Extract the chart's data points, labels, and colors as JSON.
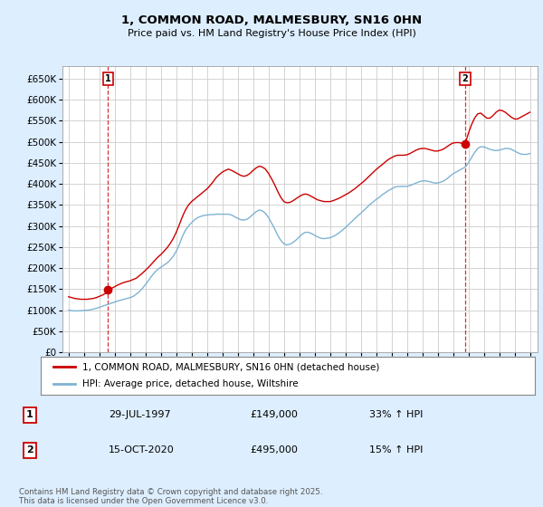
{
  "title_line1": "1, COMMON ROAD, MALMESBURY, SN16 0HN",
  "title_line2": "Price paid vs. HM Land Registry's House Price Index (HPI)",
  "legend_entry1": "1, COMMON ROAD, MALMESBURY, SN16 0HN (detached house)",
  "legend_entry2": "HPI: Average price, detached house, Wiltshire",
  "annotation1_label": "1",
  "annotation1_date": "29-JUL-1997",
  "annotation1_price": "£149,000",
  "annotation1_hpi": "33% ↑ HPI",
  "annotation2_label": "2",
  "annotation2_date": "15-OCT-2020",
  "annotation2_price": "£495,000",
  "annotation2_hpi": "15% ↑ HPI",
  "footer": "Contains HM Land Registry data © Crown copyright and database right 2025.\nThis data is licensed under the Open Government Licence v3.0.",
  "red_color": "#cc0000",
  "blue_color": "#7fb3d3",
  "bg_color": "#ddeeff",
  "plot_bg": "#ffffff",
  "grid_color": "#cccccc",
  "ylim": [
    0,
    680000
  ],
  "yticks": [
    0,
    50000,
    100000,
    150000,
    200000,
    250000,
    300000,
    350000,
    400000,
    450000,
    500000,
    550000,
    600000,
    650000
  ],
  "purchase1_x": 1997.57,
  "purchase1_y": 149000,
  "purchase2_x": 2020.79,
  "purchase2_y": 495000,
  "xlim": [
    1994.6,
    2025.5
  ],
  "red_line_data": [
    [
      1995.0,
      132000
    ],
    [
      1995.2,
      130000
    ],
    [
      1995.4,
      128000
    ],
    [
      1995.6,
      127000
    ],
    [
      1995.8,
      126000
    ],
    [
      1996.0,
      126000
    ],
    [
      1996.2,
      126000
    ],
    [
      1996.4,
      127000
    ],
    [
      1996.6,
      128000
    ],
    [
      1996.8,
      130000
    ],
    [
      1997.0,
      133000
    ],
    [
      1997.2,
      136000
    ],
    [
      1997.4,
      140000
    ],
    [
      1997.57,
      149000
    ],
    [
      1997.8,
      152000
    ],
    [
      1998.0,
      156000
    ],
    [
      1998.2,
      160000
    ],
    [
      1998.4,
      163000
    ],
    [
      1998.6,
      166000
    ],
    [
      1998.8,
      168000
    ],
    [
      1999.0,
      170000
    ],
    [
      1999.2,
      173000
    ],
    [
      1999.4,
      176000
    ],
    [
      1999.6,
      182000
    ],
    [
      1999.8,
      188000
    ],
    [
      2000.0,
      195000
    ],
    [
      2000.2,
      202000
    ],
    [
      2000.4,
      210000
    ],
    [
      2000.6,
      218000
    ],
    [
      2000.8,
      226000
    ],
    [
      2001.0,
      232000
    ],
    [
      2001.2,
      240000
    ],
    [
      2001.4,
      248000
    ],
    [
      2001.6,
      258000
    ],
    [
      2001.8,
      270000
    ],
    [
      2002.0,
      285000
    ],
    [
      2002.2,
      303000
    ],
    [
      2002.4,
      322000
    ],
    [
      2002.6,
      338000
    ],
    [
      2002.8,
      350000
    ],
    [
      2003.0,
      358000
    ],
    [
      2003.2,
      364000
    ],
    [
      2003.4,
      370000
    ],
    [
      2003.6,
      376000
    ],
    [
      2003.8,
      382000
    ],
    [
      2004.0,
      388000
    ],
    [
      2004.2,
      396000
    ],
    [
      2004.4,
      405000
    ],
    [
      2004.6,
      415000
    ],
    [
      2004.8,
      422000
    ],
    [
      2005.0,
      428000
    ],
    [
      2005.2,
      432000
    ],
    [
      2005.4,
      435000
    ],
    [
      2005.6,
      432000
    ],
    [
      2005.8,
      428000
    ],
    [
      2006.0,
      424000
    ],
    [
      2006.2,
      420000
    ],
    [
      2006.4,
      418000
    ],
    [
      2006.6,
      420000
    ],
    [
      2006.8,
      425000
    ],
    [
      2007.0,
      432000
    ],
    [
      2007.2,
      438000
    ],
    [
      2007.4,
      442000
    ],
    [
      2007.6,
      440000
    ],
    [
      2007.8,
      435000
    ],
    [
      2008.0,
      425000
    ],
    [
      2008.2,
      412000
    ],
    [
      2008.4,
      398000
    ],
    [
      2008.6,
      382000
    ],
    [
      2008.8,
      368000
    ],
    [
      2009.0,
      358000
    ],
    [
      2009.2,
      355000
    ],
    [
      2009.4,
      356000
    ],
    [
      2009.6,
      360000
    ],
    [
      2009.8,
      365000
    ],
    [
      2010.0,
      370000
    ],
    [
      2010.2,
      374000
    ],
    [
      2010.4,
      376000
    ],
    [
      2010.6,
      374000
    ],
    [
      2010.8,
      370000
    ],
    [
      2011.0,
      366000
    ],
    [
      2011.2,
      362000
    ],
    [
      2011.4,
      360000
    ],
    [
      2011.6,
      358000
    ],
    [
      2011.8,
      358000
    ],
    [
      2012.0,
      358000
    ],
    [
      2012.2,
      360000
    ],
    [
      2012.4,
      363000
    ],
    [
      2012.6,
      366000
    ],
    [
      2012.8,
      370000
    ],
    [
      2013.0,
      374000
    ],
    [
      2013.2,
      378000
    ],
    [
      2013.4,
      383000
    ],
    [
      2013.6,
      388000
    ],
    [
      2013.8,
      394000
    ],
    [
      2014.0,
      400000
    ],
    [
      2014.2,
      406000
    ],
    [
      2014.4,
      413000
    ],
    [
      2014.6,
      420000
    ],
    [
      2014.8,
      427000
    ],
    [
      2015.0,
      434000
    ],
    [
      2015.2,
      440000
    ],
    [
      2015.4,
      446000
    ],
    [
      2015.6,
      452000
    ],
    [
      2015.8,
      458000
    ],
    [
      2016.0,
      462000
    ],
    [
      2016.2,
      466000
    ],
    [
      2016.4,
      468000
    ],
    [
      2016.6,
      468000
    ],
    [
      2016.8,
      468000
    ],
    [
      2017.0,
      469000
    ],
    [
      2017.2,
      472000
    ],
    [
      2017.4,
      476000
    ],
    [
      2017.6,
      480000
    ],
    [
      2017.8,
      483000
    ],
    [
      2018.0,
      484000
    ],
    [
      2018.2,
      484000
    ],
    [
      2018.4,
      482000
    ],
    [
      2018.6,
      480000
    ],
    [
      2018.8,
      478000
    ],
    [
      2019.0,
      478000
    ],
    [
      2019.2,
      480000
    ],
    [
      2019.4,
      483000
    ],
    [
      2019.6,
      488000
    ],
    [
      2019.8,
      493000
    ],
    [
      2020.0,
      497000
    ],
    [
      2020.2,
      498000
    ],
    [
      2020.4,
      498000
    ],
    [
      2020.6,
      496000
    ],
    [
      2020.79,
      495000
    ],
    [
      2021.0,
      520000
    ],
    [
      2021.2,
      540000
    ],
    [
      2021.4,
      556000
    ],
    [
      2021.6,
      566000
    ],
    [
      2021.8,
      568000
    ],
    [
      2022.0,
      562000
    ],
    [
      2022.2,
      556000
    ],
    [
      2022.4,
      556000
    ],
    [
      2022.6,
      562000
    ],
    [
      2022.8,
      570000
    ],
    [
      2023.0,
      575000
    ],
    [
      2023.2,
      574000
    ],
    [
      2023.4,
      570000
    ],
    [
      2023.6,
      564000
    ],
    [
      2023.8,
      558000
    ],
    [
      2024.0,
      554000
    ],
    [
      2024.2,
      554000
    ],
    [
      2024.4,
      558000
    ],
    [
      2024.6,
      562000
    ],
    [
      2024.8,
      566000
    ],
    [
      2025.0,
      570000
    ]
  ],
  "blue_line_data": [
    [
      1995.0,
      100000
    ],
    [
      1995.2,
      99000
    ],
    [
      1995.4,
      98500
    ],
    [
      1995.6,
      98500
    ],
    [
      1995.8,
      99000
    ],
    [
      1996.0,
      99500
    ],
    [
      1996.2,
      100000
    ],
    [
      1996.4,
      101000
    ],
    [
      1996.6,
      102500
    ],
    [
      1996.8,
      104500
    ],
    [
      1997.0,
      107000
    ],
    [
      1997.2,
      109500
    ],
    [
      1997.4,
      112000
    ],
    [
      1997.6,
      114500
    ],
    [
      1997.8,
      117000
    ],
    [
      1998.0,
      119500
    ],
    [
      1998.2,
      122000
    ],
    [
      1998.4,
      124000
    ],
    [
      1998.6,
      126000
    ],
    [
      1998.8,
      128000
    ],
    [
      1999.0,
      130000
    ],
    [
      1999.2,
      133000
    ],
    [
      1999.4,
      138000
    ],
    [
      1999.6,
      144000
    ],
    [
      1999.8,
      152000
    ],
    [
      2000.0,
      161000
    ],
    [
      2000.2,
      171000
    ],
    [
      2000.4,
      181000
    ],
    [
      2000.6,
      190000
    ],
    [
      2000.8,
      197000
    ],
    [
      2001.0,
      202000
    ],
    [
      2001.2,
      207000
    ],
    [
      2001.4,
      212000
    ],
    [
      2001.6,
      219000
    ],
    [
      2001.8,
      228000
    ],
    [
      2002.0,
      240000
    ],
    [
      2002.2,
      256000
    ],
    [
      2002.4,
      275000
    ],
    [
      2002.6,
      290000
    ],
    [
      2002.8,
      300000
    ],
    [
      2003.0,
      308000
    ],
    [
      2003.2,
      315000
    ],
    [
      2003.4,
      320000
    ],
    [
      2003.6,
      323000
    ],
    [
      2003.8,
      325000
    ],
    [
      2004.0,
      326000
    ],
    [
      2004.2,
      327000
    ],
    [
      2004.4,
      327000
    ],
    [
      2004.6,
      328000
    ],
    [
      2004.8,
      328000
    ],
    [
      2005.0,
      328000
    ],
    [
      2005.2,
      328000
    ],
    [
      2005.4,
      328000
    ],
    [
      2005.6,
      326000
    ],
    [
      2005.8,
      322000
    ],
    [
      2006.0,
      318000
    ],
    [
      2006.2,
      315000
    ],
    [
      2006.4,
      314000
    ],
    [
      2006.6,
      316000
    ],
    [
      2006.8,
      321000
    ],
    [
      2007.0,
      328000
    ],
    [
      2007.2,
      334000
    ],
    [
      2007.4,
      338000
    ],
    [
      2007.6,
      336000
    ],
    [
      2007.8,
      330000
    ],
    [
      2008.0,
      320000
    ],
    [
      2008.2,
      307000
    ],
    [
      2008.4,
      293000
    ],
    [
      2008.6,
      278000
    ],
    [
      2008.8,
      266000
    ],
    [
      2009.0,
      258000
    ],
    [
      2009.2,
      255000
    ],
    [
      2009.4,
      257000
    ],
    [
      2009.6,
      261000
    ],
    [
      2009.8,
      267000
    ],
    [
      2010.0,
      274000
    ],
    [
      2010.2,
      281000
    ],
    [
      2010.4,
      285000
    ],
    [
      2010.6,
      285000
    ],
    [
      2010.8,
      282000
    ],
    [
      2011.0,
      278000
    ],
    [
      2011.2,
      274000
    ],
    [
      2011.4,
      271000
    ],
    [
      2011.6,
      270000
    ],
    [
      2011.8,
      271000
    ],
    [
      2012.0,
      272000
    ],
    [
      2012.2,
      275000
    ],
    [
      2012.4,
      279000
    ],
    [
      2012.6,
      284000
    ],
    [
      2012.8,
      290000
    ],
    [
      2013.0,
      296000
    ],
    [
      2013.2,
      303000
    ],
    [
      2013.4,
      310000
    ],
    [
      2013.6,
      317000
    ],
    [
      2013.8,
      324000
    ],
    [
      2014.0,
      330000
    ],
    [
      2014.2,
      337000
    ],
    [
      2014.4,
      344000
    ],
    [
      2014.6,
      351000
    ],
    [
      2014.8,
      357000
    ],
    [
      2015.0,
      363000
    ],
    [
      2015.2,
      368000
    ],
    [
      2015.4,
      374000
    ],
    [
      2015.6,
      379000
    ],
    [
      2015.8,
      384000
    ],
    [
      2016.0,
      388000
    ],
    [
      2016.2,
      392000
    ],
    [
      2016.4,
      394000
    ],
    [
      2016.6,
      394000
    ],
    [
      2016.8,
      394000
    ],
    [
      2017.0,
      394000
    ],
    [
      2017.2,
      396000
    ],
    [
      2017.4,
      399000
    ],
    [
      2017.6,
      402000
    ],
    [
      2017.8,
      405000
    ],
    [
      2018.0,
      407000
    ],
    [
      2018.2,
      407000
    ],
    [
      2018.4,
      406000
    ],
    [
      2018.6,
      404000
    ],
    [
      2018.8,
      402000
    ],
    [
      2019.0,
      402000
    ],
    [
      2019.2,
      404000
    ],
    [
      2019.4,
      407000
    ],
    [
      2019.6,
      412000
    ],
    [
      2019.8,
      418000
    ],
    [
      2020.0,
      424000
    ],
    [
      2020.2,
      428000
    ],
    [
      2020.4,
      432000
    ],
    [
      2020.6,
      436000
    ],
    [
      2020.8,
      440000
    ],
    [
      2021.0,
      450000
    ],
    [
      2021.2,
      462000
    ],
    [
      2021.4,
      474000
    ],
    [
      2021.6,
      484000
    ],
    [
      2021.8,
      488000
    ],
    [
      2022.0,
      488000
    ],
    [
      2022.2,
      485000
    ],
    [
      2022.4,
      482000
    ],
    [
      2022.6,
      480000
    ],
    [
      2022.8,
      479000
    ],
    [
      2023.0,
      480000
    ],
    [
      2023.2,
      482000
    ],
    [
      2023.4,
      484000
    ],
    [
      2023.6,
      484000
    ],
    [
      2023.8,
      482000
    ],
    [
      2024.0,
      478000
    ],
    [
      2024.2,
      474000
    ],
    [
      2024.4,
      471000
    ],
    [
      2024.6,
      470000
    ],
    [
      2024.8,
      470000
    ],
    [
      2025.0,
      472000
    ]
  ]
}
